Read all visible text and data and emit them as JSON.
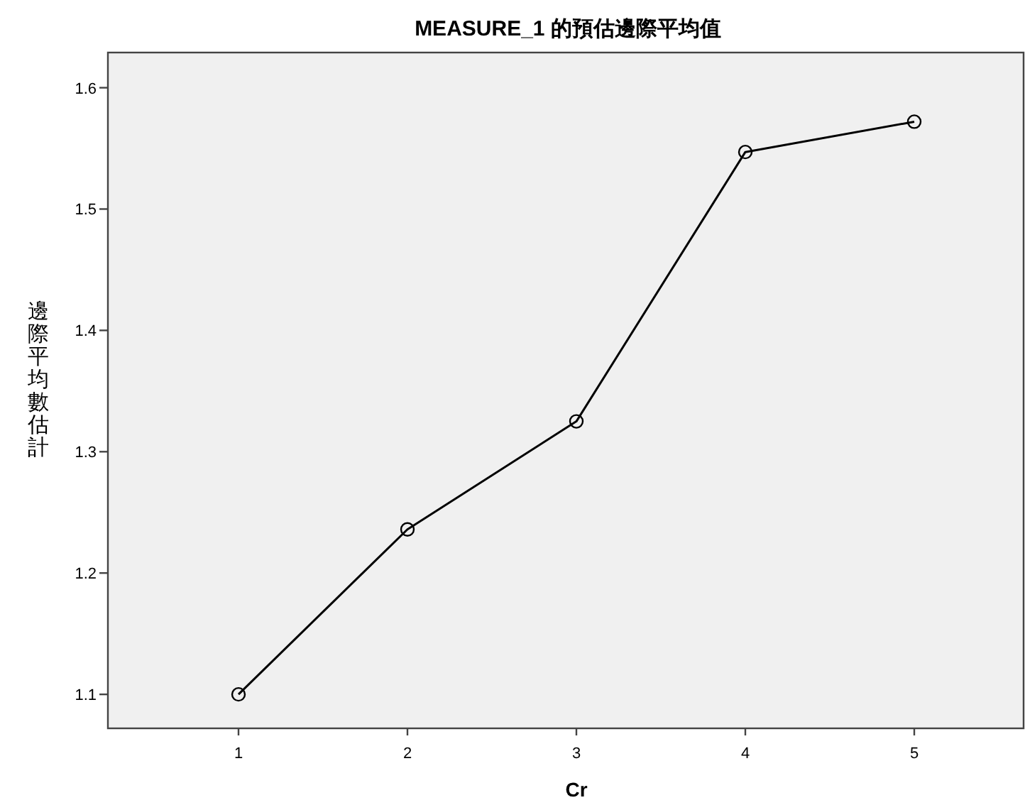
{
  "chart_data": {
    "type": "line",
    "title": "MEASURE_1 的預估邊際平均值",
    "xlabel": "Cr",
    "ylabel": "邊際平均數估計",
    "categories": [
      "1",
      "2",
      "3",
      "4",
      "5"
    ],
    "values": [
      1.1,
      1.236,
      1.325,
      1.547,
      1.572
    ],
    "color": "#000000",
    "marker": "circle",
    "ylim": [
      1.072,
      1.629
    ],
    "yticks": [
      1.1,
      1.2,
      1.3,
      1.4,
      1.5,
      1.6
    ]
  }
}
